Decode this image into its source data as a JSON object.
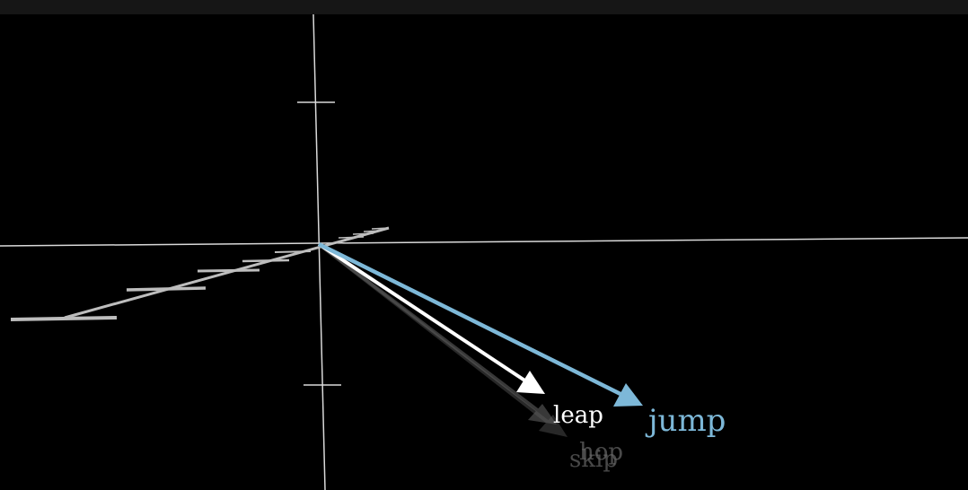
{
  "scene": {
    "background": "#000000",
    "axis_color": "#d9d9d9",
    "vectors": [
      {
        "id": "skip",
        "label": "skip",
        "color": "#555555",
        "opacity": 0.7
      },
      {
        "id": "hop",
        "label": "hop",
        "color": "#666666",
        "opacity": 0.7
      },
      {
        "id": "leap",
        "label": "leap",
        "color": "#ffffff",
        "opacity": 1
      },
      {
        "id": "jump",
        "label": "jump",
        "color": "#7db8d8",
        "opacity": 1
      }
    ]
  }
}
